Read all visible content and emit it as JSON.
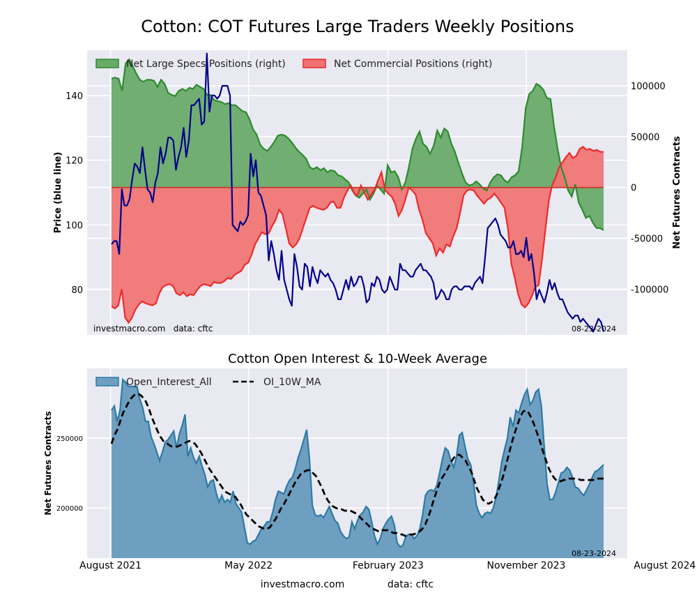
{
  "title": "Cotton: COT Futures Large Traders Weekly Positions",
  "subtitle": "Cotton Open Interest & 10-Week Average",
  "footer": {
    "source": "investmacro.com",
    "data": "data: cftc"
  },
  "colors": {
    "plot_bg": "#e9e9f2",
    "specs": "#2e8b2e",
    "specs_fill": "#6aab6a",
    "comm": "#ee2a2a",
    "comm_fill": "#f07272",
    "price": "#00008b",
    "oi": "#2c7aa5",
    "oi_fill": "#6f9fc0",
    "ma": "#000000"
  },
  "chart_data": [
    {
      "type": "area",
      "title": "Cotton: COT Futures Large Traders Weekly Positions",
      "ylabel_left": "Price (blue line)",
      "ylabel_right": "Net Futures Contracts",
      "ylim_left": [
        66,
        154
      ],
      "ylim_right": [
        -145000,
        135000
      ],
      "yticks_left": [
        "80",
        "100",
        "120",
        "140"
      ],
      "yticks_right": [
        "-100000",
        "-50000",
        "0",
        "50000",
        "100000"
      ],
      "annotation_left": "investmacro.com   data: cftc",
      "annotation_right": "08-23-2024",
      "legend": "top-left",
      "grid": true,
      "series": [
        {
          "name": "Net Large Specs Positions (right)",
          "x_start": "2021-08-03",
          "x_step_days": 7,
          "values": [
            107000,
            108000,
            107000,
            95000,
            122000,
            126000,
            119000,
            112000,
            106000,
            104000,
            106000,
            106000,
            105000,
            99000,
            106000,
            102000,
            93000,
            91000,
            90000,
            95000,
            97000,
            95000,
            98000,
            97000,
            101000,
            99000,
            97000,
            91000,
            91000,
            86000,
            85000,
            84000,
            82000,
            83000,
            81000,
            81000,
            78000,
            75000,
            74000,
            67000,
            57000,
            52000,
            42000,
            38000,
            36000,
            40000,
            45000,
            51000,
            52000,
            51000,
            48000,
            44000,
            39000,
            35000,
            32000,
            28000,
            20000,
            18000,
            20000,
            17000,
            19000,
            15000,
            17000,
            16000,
            12000,
            11000,
            8000,
            5000,
            -3000,
            -8000,
            -10000,
            -6000,
            -2000,
            -12000,
            -6000,
            2000,
            -2000,
            -6000,
            22000,
            15000,
            16000,
            10000,
            -2000,
            5000,
            20000,
            38000,
            48000,
            55000,
            43000,
            40000,
            33000,
            41000,
            56000,
            49000,
            58000,
            55000,
            43000,
            35000,
            24000,
            14000,
            5000,
            2000,
            3000,
            6000,
            3000,
            -1000,
            -3000,
            5000,
            10000,
            13000,
            12000,
            7000,
            5000,
            10000,
            12000,
            16000,
            40000,
            78000,
            92000,
            95000,
            102000,
            100000,
            96000,
            88000,
            87000,
            60000,
            38000,
            20000,
            10000,
            -3000,
            -9000,
            3000,
            -15000,
            -22000,
            -30000,
            -28000,
            -35000,
            -40000,
            -40000,
            -42000
          ]
        },
        {
          "name": "Net Commercial Positions (right)",
          "x_start": "2021-08-03",
          "x_step_days": 7,
          "values": [
            -117000,
            -119000,
            -116000,
            -100000,
            -128000,
            -133000,
            -128000,
            -120000,
            -115000,
            -112000,
            -114000,
            -115000,
            -116000,
            -114000,
            -104000,
            -98000,
            -96000,
            -95000,
            -97000,
            -104000,
            -106000,
            -103000,
            -107000,
            -105000,
            -106000,
            -101000,
            -97000,
            -95000,
            -96000,
            -97000,
            -93000,
            -94000,
            -94000,
            -92000,
            -89000,
            -90000,
            -86000,
            -84000,
            -82000,
            -76000,
            -74000,
            -66000,
            -56000,
            -50000,
            -44000,
            -46000,
            -45000,
            -38000,
            -32000,
            -22000,
            -26000,
            -40000,
            -55000,
            -59000,
            -56000,
            -50000,
            -40000,
            -30000,
            -20000,
            -18000,
            -20000,
            -21000,
            -22000,
            -20000,
            -15000,
            -14000,
            -20000,
            -20000,
            -10000,
            -3000,
            2000,
            -6000,
            -8000,
            2000,
            -5000,
            -12000,
            -7000,
            -2000,
            7000,
            15000,
            -2000,
            -6000,
            -9000,
            -16000,
            -28000,
            -22000,
            -12000,
            0,
            -3000,
            -7000,
            -22000,
            -32000,
            -45000,
            -50000,
            -55000,
            -67000,
            -60000,
            -64000,
            -56000,
            -58000,
            -48000,
            -40000,
            -25000,
            -8000,
            -3000,
            -2000,
            -3000,
            -8000,
            -12000,
            -16000,
            -12000,
            -10000,
            -6000,
            -10000,
            -15000,
            -20000,
            -40000,
            -75000,
            -89000,
            -105000,
            -115000,
            -118000,
            -114000,
            -107000,
            -98000,
            -96000,
            -70000,
            -40000,
            -12000,
            3000,
            10000,
            20000,
            25000,
            30000,
            34000,
            29000,
            31000,
            38000,
            40000,
            37000,
            38000,
            36000,
            37000,
            35000,
            35000
          ]
        },
        {
          "name": "Price (blue line)",
          "x_start": "2021-08-03",
          "x_step_days": 7,
          "values": [
            94,
            95,
            95,
            91,
            111,
            106,
            106,
            108,
            114,
            119,
            118,
            116,
            124,
            117,
            111,
            110,
            107,
            113,
            116,
            124,
            119,
            122,
            127,
            127,
            126,
            117,
            121,
            124,
            130,
            121,
            126,
            137,
            137,
            138,
            139,
            131,
            132,
            153,
            135,
            140,
            140,
            139,
            140,
            143,
            143,
            143,
            140,
            100,
            99,
            98,
            101,
            100,
            101,
            103,
            122,
            115,
            120,
            110,
            109,
            106,
            103,
            89,
            95,
            91,
            86,
            83,
            92,
            83,
            80,
            77,
            75,
            91,
            87,
            81,
            80,
            88,
            87,
            81,
            87,
            84,
            82,
            86,
            85,
            84,
            85,
            83,
            82,
            80,
            77,
            77,
            80,
            83,
            80,
            84,
            81,
            82,
            84,
            84,
            81,
            76,
            77,
            82,
            81,
            84,
            83,
            80,
            79,
            80,
            84,
            82,
            80,
            80,
            88,
            86,
            86,
            85,
            84,
            84,
            86,
            87,
            88,
            86,
            86,
            85,
            84,
            82,
            77,
            78,
            80,
            79,
            77,
            77,
            80,
            81,
            81,
            80,
            80,
            81,
            81,
            81,
            80,
            82,
            83,
            84,
            82,
            90,
            99,
            100,
            101,
            102,
            100,
            97,
            96,
            95,
            93,
            93,
            95,
            91,
            91,
            92,
            90,
            96,
            89,
            91,
            85,
            77,
            80,
            78,
            76,
            79,
            83,
            80,
            82,
            79,
            77,
            77,
            75,
            73,
            72,
            71,
            72,
            72,
            70,
            71,
            70,
            69,
            68,
            67,
            69,
            71,
            70,
            67
          ]
        }
      ]
    },
    {
      "type": "area",
      "title": "Cotton Open Interest & 10-Week Average",
      "ylabel": "Net Futures Contracts",
      "ylim": [
        164000,
        300000
      ],
      "yticks": [
        "200000",
        "250000"
      ],
      "x_ticks": [
        "August 2021",
        "May 2022",
        "February 2023",
        "November 2023",
        "August 2024"
      ],
      "annotation_right": "08-23-2024",
      "legend": "top-left",
      "grid": true,
      "series": [
        {
          "name": "Open_Interest_All",
          "x_start": "2021-08-03",
          "x_step_days": 7,
          "values": [
            270000,
            273000,
            262000,
            270000,
            292000,
            290000,
            287000,
            287000,
            287000,
            287000,
            278000,
            272000,
            262000,
            262000,
            251000,
            246000,
            240000,
            234000,
            240000,
            247000,
            249000,
            252000,
            255000,
            243000,
            253000,
            259000,
            267000,
            237000,
            243000,
            236000,
            232000,
            237000,
            230000,
            224000,
            215000,
            219000,
            220000,
            211000,
            204000,
            209000,
            204000,
            206000,
            204000,
            212000,
            203000,
            200000,
            197000,
            186000,
            175000,
            174000,
            176000,
            177000,
            181000,
            185000,
            187000,
            190000,
            190000,
            197000,
            206000,
            212000,
            211000,
            210000,
            216000,
            220000,
            222000,
            228000,
            236000,
            242000,
            249000,
            256000,
            235000,
            202000,
            195000,
            194000,
            195000,
            193000,
            197000,
            201000,
            196000,
            191000,
            189000,
            183000,
            180000,
            178000,
            179000,
            190000,
            185000,
            191000,
            195000,
            197000,
            201000,
            199000,
            190000,
            180000,
            174000,
            178000,
            185000,
            189000,
            192000,
            194000,
            188000,
            175000,
            172000,
            173000,
            179000,
            181000,
            181000,
            178000,
            180000,
            185000,
            195000,
            209000,
            212000,
            213000,
            212000,
            216000,
            225000,
            235000,
            243000,
            241000,
            234000,
            229000,
            237000,
            252000,
            254000,
            244000,
            235000,
            231000,
            218000,
            202000,
            196000,
            193000,
            196000,
            197000,
            196000,
            200000,
            208000,
            220000,
            233000,
            242000,
            250000,
            265000,
            258000,
            270000,
            268000,
            275000,
            281000,
            285000,
            274000,
            277000,
            283000,
            285000,
            273000,
            244000,
            217000,
            206000,
            206000,
            211000,
            218000,
            225000,
            226000,
            229000,
            227000,
            222000,
            215000,
            214000,
            211000,
            209000,
            213000,
            217000,
            222000,
            226000,
            227000,
            229000,
            231000
          ]
        },
        {
          "name": "OI_10W_MA",
          "x_start": "2021-08-03",
          "x_step_days": 7,
          "values": [
            246000,
            252000,
            256000,
            262000,
            268000,
            272000,
            276000,
            279000,
            281000,
            282000,
            281000,
            279000,
            276000,
            271000,
            265000,
            260000,
            255000,
            251000,
            248000,
            247000,
            245000,
            244000,
            244000,
            244000,
            245000,
            246000,
            247000,
            248000,
            247000,
            246000,
            243000,
            240000,
            236000,
            232000,
            228000,
            225000,
            222000,
            219000,
            216000,
            213000,
            211000,
            210000,
            209000,
            208000,
            205000,
            202000,
            198000,
            195000,
            193000,
            191000,
            189000,
            187000,
            186000,
            185000,
            185000,
            186000,
            189000,
            192000,
            196000,
            200000,
            203000,
            207000,
            211000,
            215000,
            219000,
            222000,
            225000,
            226000,
            227000,
            227000,
            225000,
            223000,
            219000,
            215000,
            210000,
            206000,
            203000,
            201000,
            200000,
            199000,
            199000,
            198000,
            198000,
            198000,
            197000,
            196000,
            194000,
            192000,
            190000,
            188000,
            186000,
            185000,
            184000,
            183000,
            184000,
            184000,
            184000,
            183000,
            182000,
            182000,
            181000,
            181000,
            180000,
            180000,
            181000,
            181000,
            182000,
            183000,
            185000,
            188000,
            193000,
            199000,
            206000,
            212000,
            218000,
            222000,
            225000,
            229000,
            233000,
            236000,
            238000,
            238000,
            236000,
            234000,
            230000,
            226000,
            220000,
            214000,
            210000,
            206000,
            204000,
            203000,
            204000,
            206000,
            210000,
            216000,
            222000,
            230000,
            238000,
            246000,
            253000,
            259000,
            265000,
            269000,
            270000,
            268000,
            264000,
            259000,
            253000,
            247000,
            240000,
            234000,
            228000,
            224000,
            221000,
            219000,
            219000,
            220000,
            220000,
            221000,
            221000,
            221000,
            221000,
            220000,
            220000,
            220000,
            220000,
            220000,
            220000,
            221000,
            221000,
            221000
          ]
        }
      ]
    }
  ]
}
